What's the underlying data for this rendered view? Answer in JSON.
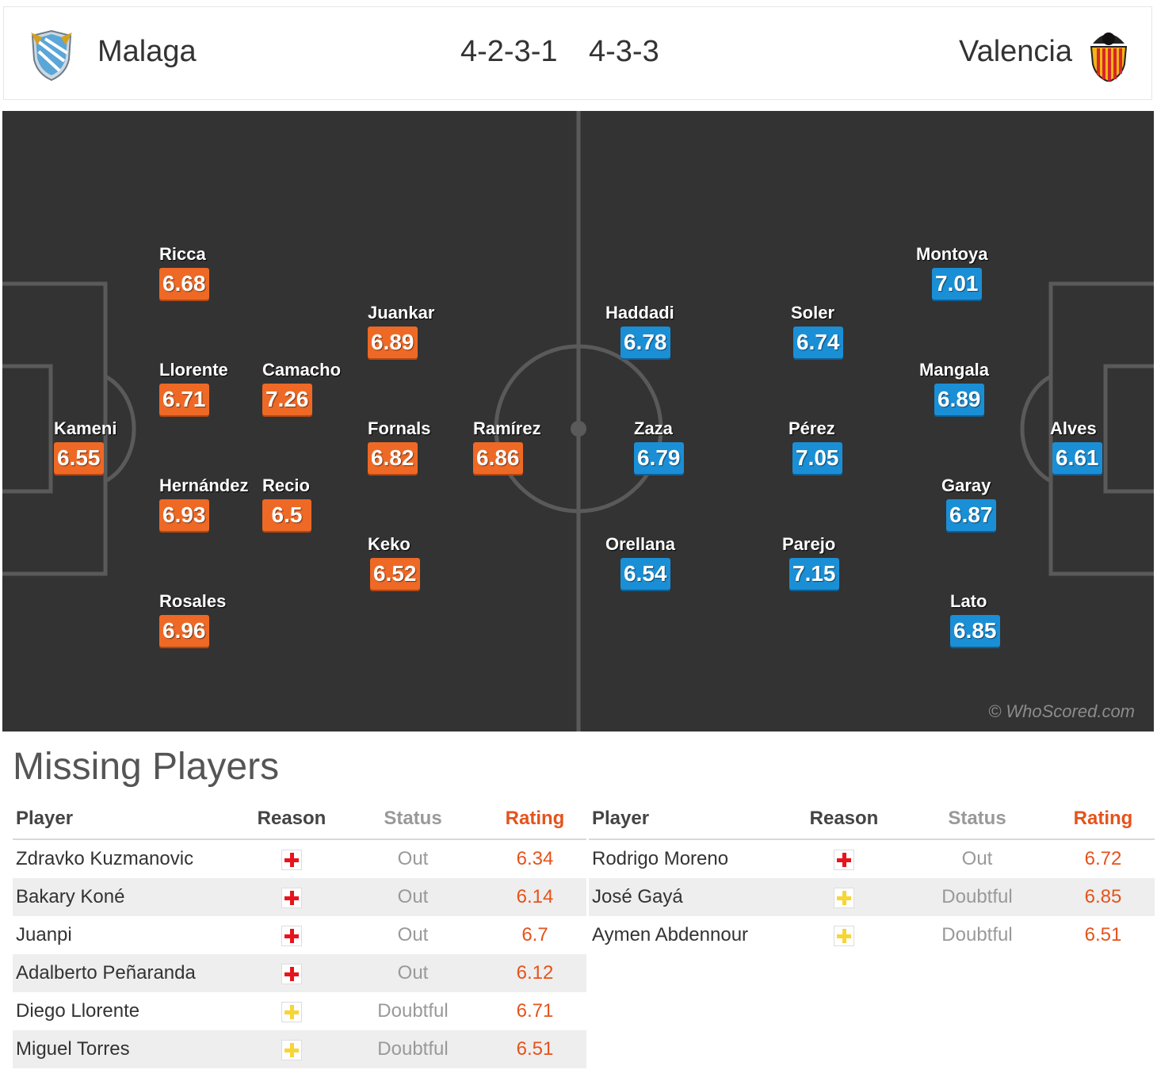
{
  "header": {
    "home_team": "Malaga",
    "away_team": "Valencia",
    "home_formation": "4-2-3-1",
    "away_formation": "4-3-3"
  },
  "pitch": {
    "watermark": "© WhoScored.com",
    "colors": {
      "home": "#ee6925",
      "away": "#1a8fd6",
      "pitch": "#333333"
    },
    "home_players": [
      {
        "name": "Ricca",
        "rating": "6.68"
      },
      {
        "name": "Juankar",
        "rating": "6.89"
      },
      {
        "name": "Llorente",
        "rating": "6.71"
      },
      {
        "name": "Camacho",
        "rating": "7.26"
      },
      {
        "name": "Kameni",
        "rating": "6.55"
      },
      {
        "name": "Fornals",
        "rating": "6.82"
      },
      {
        "name": "Ramírez",
        "rating": "6.86"
      },
      {
        "name": "Hernández",
        "rating": "6.93"
      },
      {
        "name": "Recio",
        "rating": "6.5"
      },
      {
        "name": "Keko",
        "rating": "6.52"
      },
      {
        "name": "Rosales",
        "rating": "6.96"
      }
    ],
    "away_players": [
      {
        "name": "Montoya",
        "rating": "7.01"
      },
      {
        "name": "Haddadi",
        "rating": "6.78"
      },
      {
        "name": "Soler",
        "rating": "6.74"
      },
      {
        "name": "Mangala",
        "rating": "6.89"
      },
      {
        "name": "Zaza",
        "rating": "6.79"
      },
      {
        "name": "Pérez",
        "rating": "7.05"
      },
      {
        "name": "Alves",
        "rating": "6.61"
      },
      {
        "name": "Garay",
        "rating": "6.87"
      },
      {
        "name": "Orellana",
        "rating": "6.54"
      },
      {
        "name": "Parejo",
        "rating": "7.15"
      },
      {
        "name": "Lato",
        "rating": "6.85"
      }
    ]
  },
  "missing": {
    "title": "Missing Players",
    "columns": [
      "Player",
      "Reason",
      "Status",
      "Rating"
    ],
    "status_colors": {
      "injury": "#e8141c",
      "doubtful": "#f7d533"
    },
    "home": [
      {
        "player": "Zdravko Kuzmanovic",
        "reason": "injury-icon",
        "status": "Out",
        "rating": "6.34"
      },
      {
        "player": "Bakary Koné",
        "reason": "injury-icon",
        "status": "Out",
        "rating": "6.14"
      },
      {
        "player": "Juanpi",
        "reason": "injury-icon",
        "status": "Out",
        "rating": "6.7"
      },
      {
        "player": "Adalberto Peñaranda",
        "reason": "injury-icon",
        "status": "Out",
        "rating": "6.12"
      },
      {
        "player": "Diego Llorente",
        "reason": "doubtful-icon",
        "status": "Doubtful",
        "rating": "6.71"
      },
      {
        "player": "Miguel Torres",
        "reason": "doubtful-icon",
        "status": "Doubtful",
        "rating": "6.51"
      }
    ],
    "away": [
      {
        "player": "Rodrigo Moreno",
        "reason": "injury-icon",
        "status": "Out",
        "rating": "6.72"
      },
      {
        "player": "José Gayá",
        "reason": "doubtful-icon",
        "status": "Doubtful",
        "rating": "6.85"
      },
      {
        "player": "Aymen Abdennour",
        "reason": "doubtful-icon",
        "status": "Doubtful",
        "rating": "6.51"
      }
    ]
  }
}
